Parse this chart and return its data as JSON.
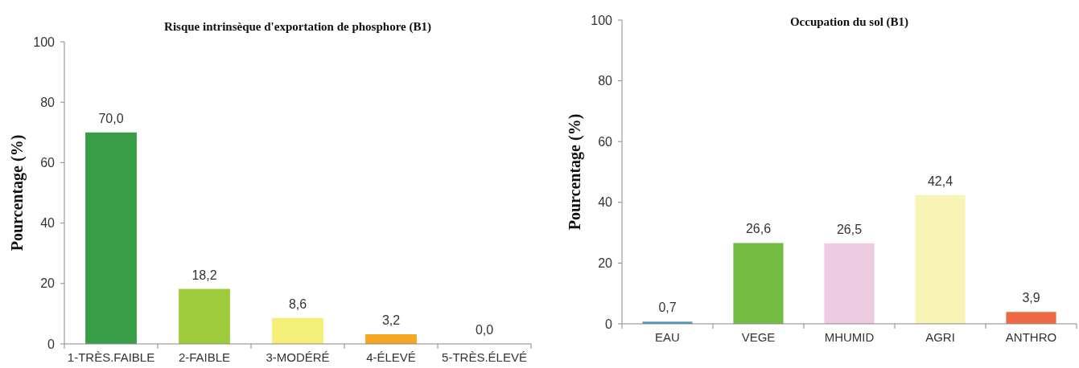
{
  "chart_data": [
    {
      "type": "bar",
      "title": "Risque intrinsèque d'exportation de phosphore (B1)",
      "ylabel": "Pourcentage (%)",
      "categories": [
        "1-TRÈS.FAIBLE",
        "2-FAIBLE",
        "3-MODÉRÉ",
        "4-ÉLEVÉ",
        "5-TRÈS.ÉLEVÉ"
      ],
      "values": [
        70.0,
        18.2,
        8.6,
        3.2,
        0.0
      ],
      "colors": [
        "#379e45",
        "#9ecb3b",
        "#f4ef78",
        "#f5a623",
        "#e8e8e8"
      ],
      "value_labels": [
        "70,0",
        "18,2",
        "8,6",
        "3,2",
        "0,0"
      ],
      "ylim": [
        0,
        100
      ],
      "yticks": [
        0,
        20,
        40,
        60,
        80,
        100
      ],
      "grid": false
    },
    {
      "type": "bar",
      "title": "Occupation du sol (B1)",
      "ylabel": "Pourcentage (%)",
      "categories": [
        "EAU",
        "VEGE",
        "MHUMID",
        "AGRI",
        "ANTHRO"
      ],
      "values": [
        0.7,
        26.6,
        26.5,
        42.4,
        3.9
      ],
      "colors": [
        "#4a9bb5",
        "#74bb43",
        "#edcbe0",
        "#f8f4b6",
        "#ef6a43"
      ],
      "value_labels": [
        "0,7",
        "26,6",
        "26,5",
        "42,4",
        "3,9"
      ],
      "ylim": [
        0,
        100
      ],
      "yticks": [
        0,
        20,
        40,
        60,
        80,
        100
      ],
      "grid": false
    }
  ]
}
